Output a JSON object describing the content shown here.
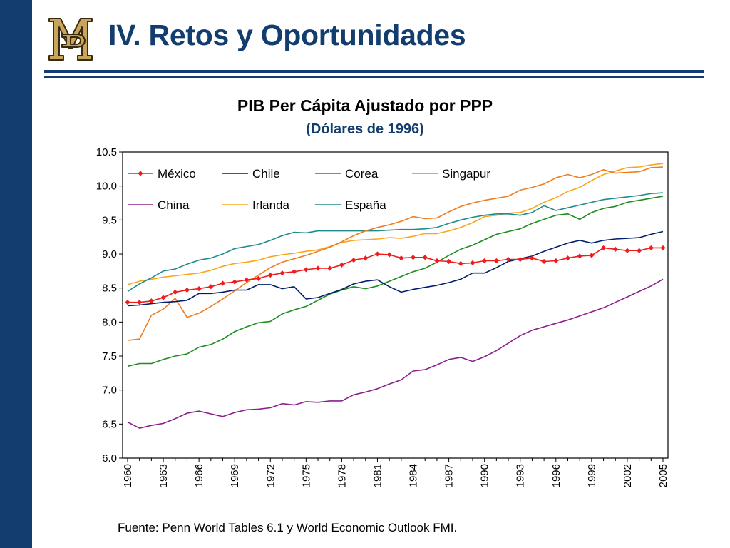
{
  "slide": {
    "title": "IV. Retos y Oportunidades",
    "source": "Fuente: Penn World Tables 6.1 y World Economic Outlook FMI."
  },
  "colors": {
    "navy": "#123d6e",
    "logo_gold": "#c9a55c"
  },
  "chart_data": {
    "type": "line",
    "title": "PIB Per Cápita Ajustado por PPP",
    "subtitle": "(Dólares de 1996)",
    "xlabel": "",
    "ylabel": "",
    "x_start": 1960,
    "x_end": 2005,
    "x_tick_labels": [
      "1960",
      "1963",
      "1966",
      "1969",
      "1972",
      "1975",
      "1978",
      "1981",
      "1984",
      "1987",
      "1990",
      "1993",
      "1996",
      "1999",
      "2002",
      "2005"
    ],
    "ylim": [
      6.0,
      10.5
    ],
    "y_ticks": [
      6.0,
      6.5,
      7.0,
      7.5,
      8.0,
      8.5,
      9.0,
      9.5,
      10.0,
      10.5
    ],
    "y_tick_labels": [
      "6.0",
      "6.5",
      "7.0",
      "7.5",
      "8.0",
      "8.5",
      "9.0",
      "9.5",
      "10.0",
      "10.5"
    ],
    "grid": false,
    "legend_position": "top-left, inside plot",
    "series": [
      {
        "name": "México",
        "color": "#ee1c1c",
        "marker": "diamond",
        "values": [
          8.29,
          8.29,
          8.31,
          8.36,
          8.44,
          8.47,
          8.49,
          8.52,
          8.57,
          8.59,
          8.62,
          8.64,
          8.69,
          8.72,
          8.74,
          8.77,
          8.79,
          8.79,
          8.84,
          8.91,
          8.94,
          9.0,
          8.99,
          8.94,
          8.95,
          8.95,
          8.9,
          8.89,
          8.86,
          8.87,
          8.9,
          8.9,
          8.92,
          8.92,
          8.94,
          8.89,
          8.9,
          8.94,
          8.97,
          8.98,
          9.09,
          9.07,
          9.05,
          9.05,
          9.09,
          9.09
        ]
      },
      {
        "name": "Chile",
        "color": "#001e6b",
        "values": [
          8.24,
          8.25,
          8.27,
          8.29,
          8.3,
          8.32,
          8.42,
          8.42,
          8.44,
          8.47,
          8.47,
          8.55,
          8.55,
          8.49,
          8.52,
          8.34,
          8.36,
          8.42,
          8.48,
          8.56,
          8.6,
          8.62,
          8.52,
          8.44,
          8.48,
          8.51,
          8.54,
          8.58,
          8.63,
          8.72,
          8.72,
          8.8,
          8.89,
          8.93,
          8.97,
          9.04,
          9.1,
          9.16,
          9.2,
          9.16,
          9.2,
          9.22,
          9.23,
          9.24,
          9.29,
          9.33
        ]
      },
      {
        "name": "Corea",
        "color": "#1e8c1e",
        "values": [
          7.35,
          7.39,
          7.39,
          7.45,
          7.5,
          7.53,
          7.63,
          7.67,
          7.75,
          7.86,
          7.93,
          7.99,
          8.01,
          8.12,
          8.18,
          8.23,
          8.32,
          8.41,
          8.47,
          8.52,
          8.49,
          8.53,
          8.6,
          8.67,
          8.74,
          8.79,
          8.88,
          8.98,
          9.07,
          9.13,
          9.21,
          9.29,
          9.33,
          9.37,
          9.45,
          9.51,
          9.57,
          9.59,
          9.51,
          9.61,
          9.67,
          9.7,
          9.76,
          9.79,
          9.82,
          9.85
        ]
      },
      {
        "name": "Singapur",
        "color": "#ee7d20",
        "values": [
          7.73,
          7.75,
          8.1,
          8.19,
          8.35,
          8.07,
          8.13,
          8.23,
          8.34,
          8.46,
          8.58,
          8.69,
          8.8,
          8.88,
          8.93,
          8.98,
          9.04,
          9.1,
          9.18,
          9.27,
          9.34,
          9.39,
          9.43,
          9.48,
          9.55,
          9.52,
          9.53,
          9.62,
          9.7,
          9.75,
          9.79,
          9.82,
          9.85,
          9.94,
          9.98,
          10.03,
          10.12,
          10.17,
          10.12,
          10.17,
          10.24,
          10.19,
          10.2,
          10.21,
          10.27,
          10.28
        ]
      },
      {
        "name": "China",
        "color": "#8c1e8c",
        "values": [
          6.53,
          6.44,
          6.48,
          6.51,
          6.58,
          6.66,
          6.69,
          6.65,
          6.61,
          6.67,
          6.71,
          6.72,
          6.74,
          6.8,
          6.78,
          6.83,
          6.82,
          6.84,
          6.84,
          6.93,
          6.97,
          7.02,
          7.09,
          7.15,
          7.28,
          7.3,
          7.37,
          7.45,
          7.48,
          7.42,
          7.49,
          7.58,
          7.69,
          7.8,
          7.88,
          7.93,
          7.98,
          8.03,
          8.09,
          8.15,
          8.21,
          8.29,
          8.37,
          8.45,
          8.53,
          8.63
        ]
      },
      {
        "name": "Irlanda",
        "color": "#f9a61b",
        "values": [
          8.55,
          8.6,
          8.63,
          8.66,
          8.68,
          8.7,
          8.72,
          8.76,
          8.82,
          8.86,
          8.88,
          8.91,
          8.96,
          8.99,
          9.01,
          9.04,
          9.06,
          9.11,
          9.17,
          9.2,
          9.21,
          9.22,
          9.24,
          9.23,
          9.26,
          9.3,
          9.3,
          9.34,
          9.39,
          9.46,
          9.55,
          9.57,
          9.6,
          9.61,
          9.67,
          9.76,
          9.83,
          9.92,
          9.98,
          10.08,
          10.17,
          10.22,
          10.27,
          10.28,
          10.31,
          10.33
        ]
      },
      {
        "name": "España",
        "color": "#1f8c8c",
        "values": [
          8.45,
          8.56,
          8.65,
          8.75,
          8.78,
          8.85,
          8.91,
          8.94,
          9.0,
          9.08,
          9.11,
          9.14,
          9.2,
          9.27,
          9.32,
          9.31,
          9.34,
          9.34,
          9.34,
          9.34,
          9.34,
          9.34,
          9.35,
          9.36,
          9.36,
          9.37,
          9.39,
          9.45,
          9.5,
          9.54,
          9.57,
          9.59,
          9.59,
          9.57,
          9.61,
          9.71,
          9.64,
          9.68,
          9.72,
          9.76,
          9.8,
          9.82,
          9.84,
          9.86,
          9.89,
          9.9
        ]
      }
    ]
  }
}
